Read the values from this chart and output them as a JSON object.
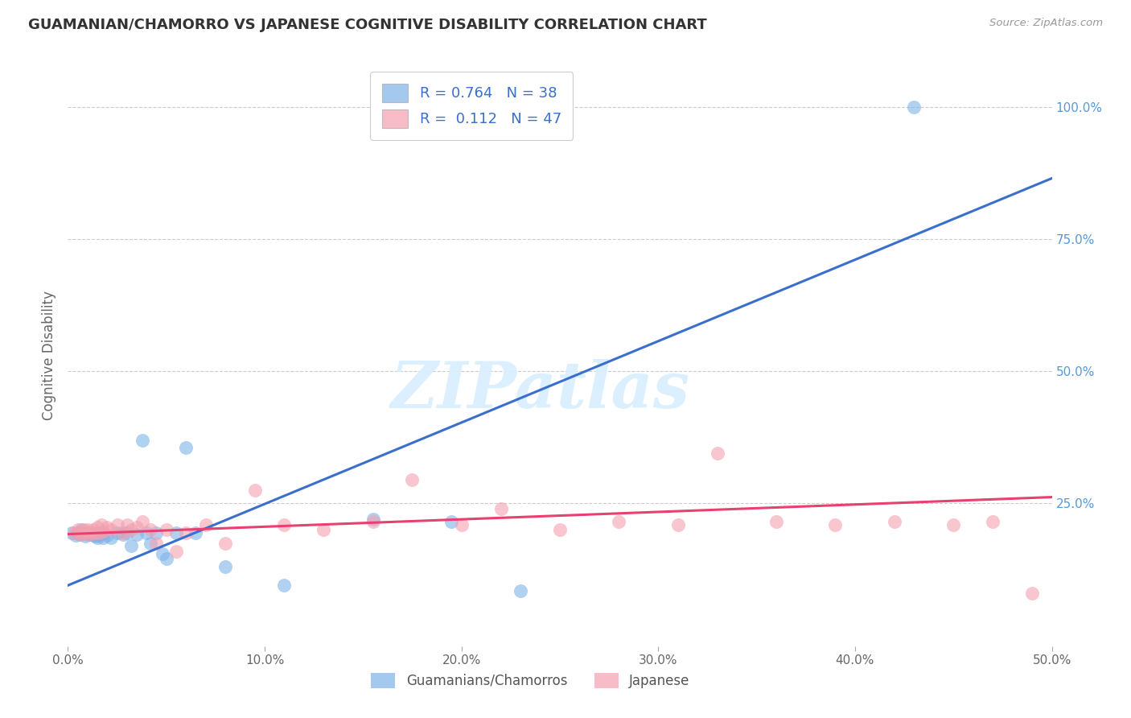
{
  "title": "GUAMANIAN/CHAMORRO VS JAPANESE COGNITIVE DISABILITY CORRELATION CHART",
  "source": "Source: ZipAtlas.com",
  "ylabel": "Cognitive Disability",
  "xlim": [
    0.0,
    0.5
  ],
  "ylim": [
    -0.02,
    1.08
  ],
  "xticks": [
    0.0,
    0.1,
    0.2,
    0.3,
    0.4,
    0.5
  ],
  "yticks_right": [
    0.25,
    0.5,
    0.75,
    1.0
  ],
  "R_blue": 0.764,
  "N_blue": 38,
  "R_pink": 0.112,
  "N_pink": 47,
  "blue_color": "#7EB3E8",
  "pink_color": "#F4A0B0",
  "blue_line_color": "#3B6FCC",
  "pink_line_color": "#E84070",
  "legend_label_blue": "Guamanians/Chamorros",
  "legend_label_pink": "Japanese",
  "watermark": "ZIPatlas",
  "blue_scatter_x": [
    0.002,
    0.004,
    0.005,
    0.006,
    0.007,
    0.008,
    0.009,
    0.01,
    0.011,
    0.012,
    0.013,
    0.014,
    0.015,
    0.016,
    0.017,
    0.018,
    0.02,
    0.022,
    0.025,
    0.028,
    0.03,
    0.032,
    0.035,
    0.038,
    0.04,
    0.042,
    0.045,
    0.048,
    0.05,
    0.055,
    0.06,
    0.065,
    0.08,
    0.11,
    0.155,
    0.195,
    0.23,
    0.43
  ],
  "blue_scatter_y": [
    0.195,
    0.19,
    0.195,
    0.192,
    0.2,
    0.195,
    0.188,
    0.192,
    0.195,
    0.192,
    0.19,
    0.188,
    0.185,
    0.192,
    0.195,
    0.185,
    0.19,
    0.185,
    0.195,
    0.192,
    0.195,
    0.17,
    0.192,
    0.37,
    0.195,
    0.175,
    0.195,
    0.155,
    0.145,
    0.195,
    0.355,
    0.195,
    0.13,
    0.095,
    0.22,
    0.215,
    0.085,
    1.0
  ],
  "pink_scatter_x": [
    0.003,
    0.005,
    0.006,
    0.007,
    0.008,
    0.009,
    0.01,
    0.011,
    0.012,
    0.013,
    0.014,
    0.015,
    0.016,
    0.017,
    0.018,
    0.02,
    0.022,
    0.025,
    0.028,
    0.03,
    0.032,
    0.035,
    0.038,
    0.042,
    0.045,
    0.05,
    0.055,
    0.06,
    0.07,
    0.08,
    0.095,
    0.11,
    0.13,
    0.155,
    0.175,
    0.2,
    0.22,
    0.25,
    0.28,
    0.31,
    0.33,
    0.36,
    0.39,
    0.42,
    0.45,
    0.47,
    0.49
  ],
  "pink_scatter_y": [
    0.195,
    0.2,
    0.195,
    0.192,
    0.2,
    0.195,
    0.2,
    0.192,
    0.195,
    0.2,
    0.195,
    0.205,
    0.195,
    0.21,
    0.198,
    0.205,
    0.2,
    0.21,
    0.195,
    0.21,
    0.2,
    0.205,
    0.215,
    0.2,
    0.175,
    0.2,
    0.16,
    0.195,
    0.21,
    0.175,
    0.275,
    0.21,
    0.2,
    0.215,
    0.295,
    0.21,
    0.24,
    0.2,
    0.215,
    0.21,
    0.345,
    0.215,
    0.21,
    0.215,
    0.21,
    0.215,
    0.08
  ]
}
